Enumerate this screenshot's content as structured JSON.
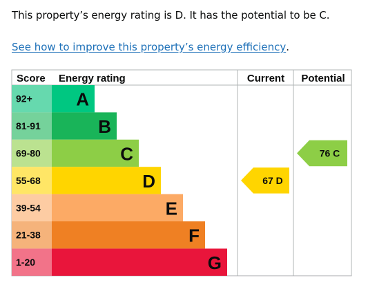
{
  "summary": {
    "text": "This property’s energy rating is D. It has the potential to be C.",
    "link_text": "See how to improve this property’s energy efficiency",
    "link_suffix": "."
  },
  "chart_data": {
    "type": "table",
    "headers": {
      "score": "Score",
      "rating": "Energy rating",
      "current": "Current",
      "potential": "Potential"
    },
    "bands": [
      {
        "letter": "A",
        "range": "92+",
        "bar_color": "#00c781",
        "score_color": "#66d9ae"
      },
      {
        "letter": "B",
        "range": "81-91",
        "bar_color": "#19b459",
        "score_color": "#75d29b"
      },
      {
        "letter": "C",
        "range": "69-80",
        "bar_color": "#8dce46",
        "score_color": "#bbe290"
      },
      {
        "letter": "D",
        "range": "55-68",
        "bar_color": "#ffd500",
        "score_color": "#ffe666"
      },
      {
        "letter": "E",
        "range": "39-54",
        "bar_color": "#fcaa65",
        "score_color": "#fdcca3"
      },
      {
        "letter": "F",
        "range": "21-38",
        "bar_color": "#ef8023",
        "score_color": "#f5b37b"
      },
      {
        "letter": "G",
        "range": "1-20",
        "bar_color": "#e9153b",
        "score_color": "#f27389"
      }
    ],
    "current": {
      "score": 67,
      "letter": "D",
      "label": "67 D",
      "color": "#ffd500"
    },
    "potential": {
      "score": 76,
      "letter": "C",
      "label": "76 C",
      "color": "#8dce46"
    }
  }
}
